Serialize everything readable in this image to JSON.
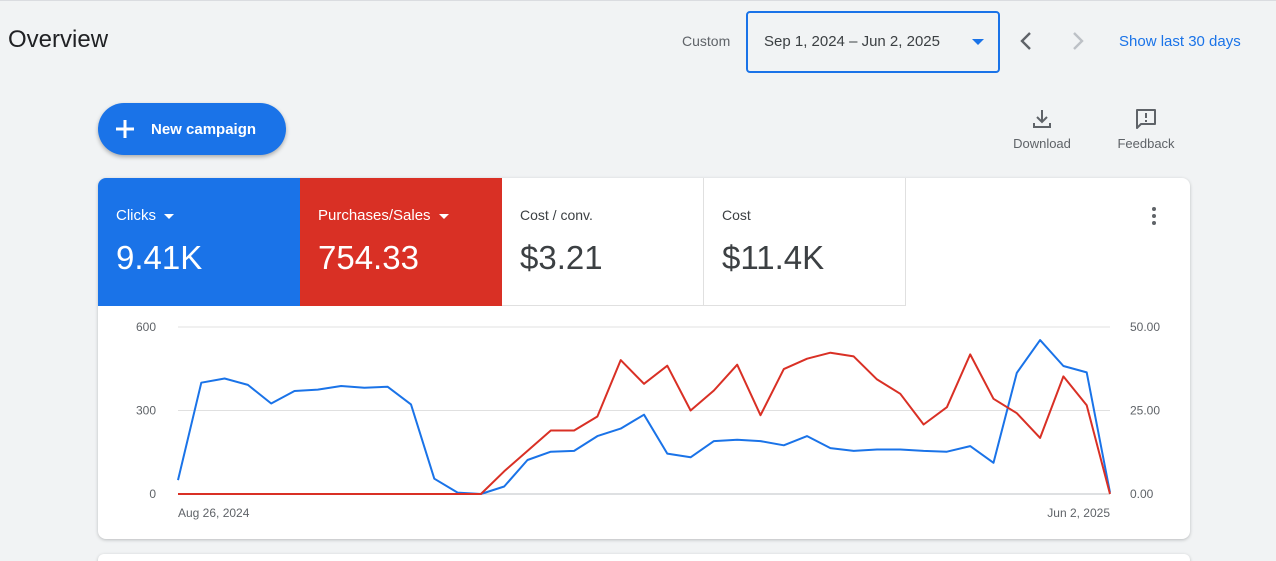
{
  "header": {
    "title": "Overview",
    "custom_label": "Custom",
    "date_range": "Sep 1, 2024 – Jun 2, 2025",
    "show_last": "Show last 30 days"
  },
  "toolbar": {
    "new_campaign": "New campaign",
    "download": "Download",
    "feedback": "Feedback"
  },
  "metrics": [
    {
      "label": "Clicks",
      "value": "9.41K",
      "color": "#1a73e8"
    },
    {
      "label": "Purchases/Sales",
      "value": "754.33",
      "color": "#d93025"
    },
    {
      "label": "Cost / conv.",
      "value": "$3.21"
    },
    {
      "label": "Cost",
      "value": "$11.4K"
    }
  ],
  "colors": {
    "accent": "#1a73e8",
    "clicks": "#1a73e8",
    "purchases": "#d93025"
  },
  "icons": [
    "plus-icon",
    "download-icon",
    "feedback-icon",
    "more-vert-icon",
    "chevron-left-icon",
    "chevron-right-icon",
    "dropdown-arrow-icon"
  ],
  "chart_data": {
    "type": "line",
    "x_start_label": "Aug 26, 2024",
    "x_end_label": "Jun 2, 2025",
    "left_axis": {
      "ticks": [
        "0",
        "300",
        "600"
      ],
      "ylim": [
        0,
        600
      ]
    },
    "right_axis": {
      "ticks": [
        "0.00",
        "25.00",
        "50.00"
      ],
      "ylim": [
        0,
        50
      ]
    },
    "grid": true,
    "series": [
      {
        "name": "Clicks",
        "axis": "left",
        "color": "#1a73e8",
        "values": [
          50,
          400,
          415,
          392,
          325,
          370,
          375,
          388,
          382,
          385,
          322,
          55,
          5,
          0,
          27,
          122,
          152,
          155,
          208,
          235,
          285,
          145,
          132,
          190,
          195,
          190,
          175,
          208,
          165,
          155,
          160,
          160,
          155,
          152,
          172,
          112,
          435,
          553,
          460,
          437,
          5
        ]
      },
      {
        "name": "Purchases/Sales",
        "axis": "right",
        "color": "#d93025",
        "values": [
          0,
          0,
          0,
          0,
          0,
          0,
          0,
          0,
          0,
          0,
          0,
          0,
          0,
          0,
          6.8,
          12.9,
          19.0,
          19.0,
          23.2,
          40.1,
          33.0,
          38.4,
          25.0,
          31.0,
          38.7,
          23.6,
          37.4,
          40.5,
          42.3,
          41.2,
          34.3,
          30.0,
          20.8,
          26.0,
          41.8,
          28.5,
          24.2,
          16.8,
          35.2,
          26.6,
          0
        ]
      }
    ]
  }
}
